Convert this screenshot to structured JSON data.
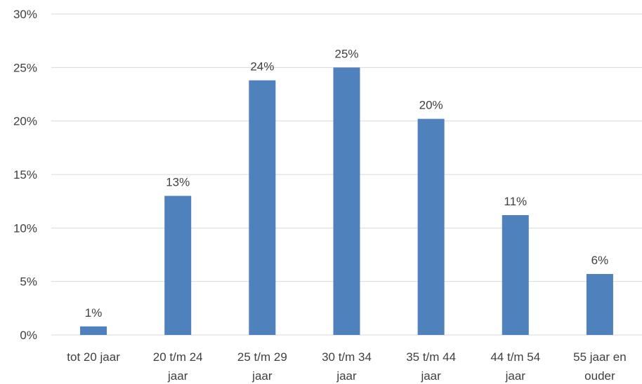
{
  "chart_data": {
    "type": "bar",
    "categories": [
      [
        "tot 20 jaar"
      ],
      [
        "20 t/m 24",
        "jaar"
      ],
      [
        "25 t/m 29",
        "jaar"
      ],
      [
        "30 t/m 34",
        "jaar"
      ],
      [
        "35 t/m 44",
        "jaar"
      ],
      [
        "44 t/m 54",
        "jaar"
      ],
      [
        "55 jaar en",
        "ouder"
      ]
    ],
    "values": [
      0.8,
      13.0,
      23.8,
      25.0,
      20.2,
      11.2,
      5.7
    ],
    "data_labels": [
      "1%",
      "13%",
      "24%",
      "25%",
      "20%",
      "11%",
      "6%"
    ],
    "y_ticks": [
      "0%",
      "5%",
      "10%",
      "15%",
      "20%",
      "25%",
      "30%"
    ],
    "y_tick_values": [
      0,
      5,
      10,
      15,
      20,
      25,
      30
    ],
    "ylim": [
      0,
      30
    ],
    "grid": true,
    "legend": "none",
    "bar_color": "#4f81bd",
    "grid_color": "#d9d9d9",
    "text_color": "#404040"
  }
}
